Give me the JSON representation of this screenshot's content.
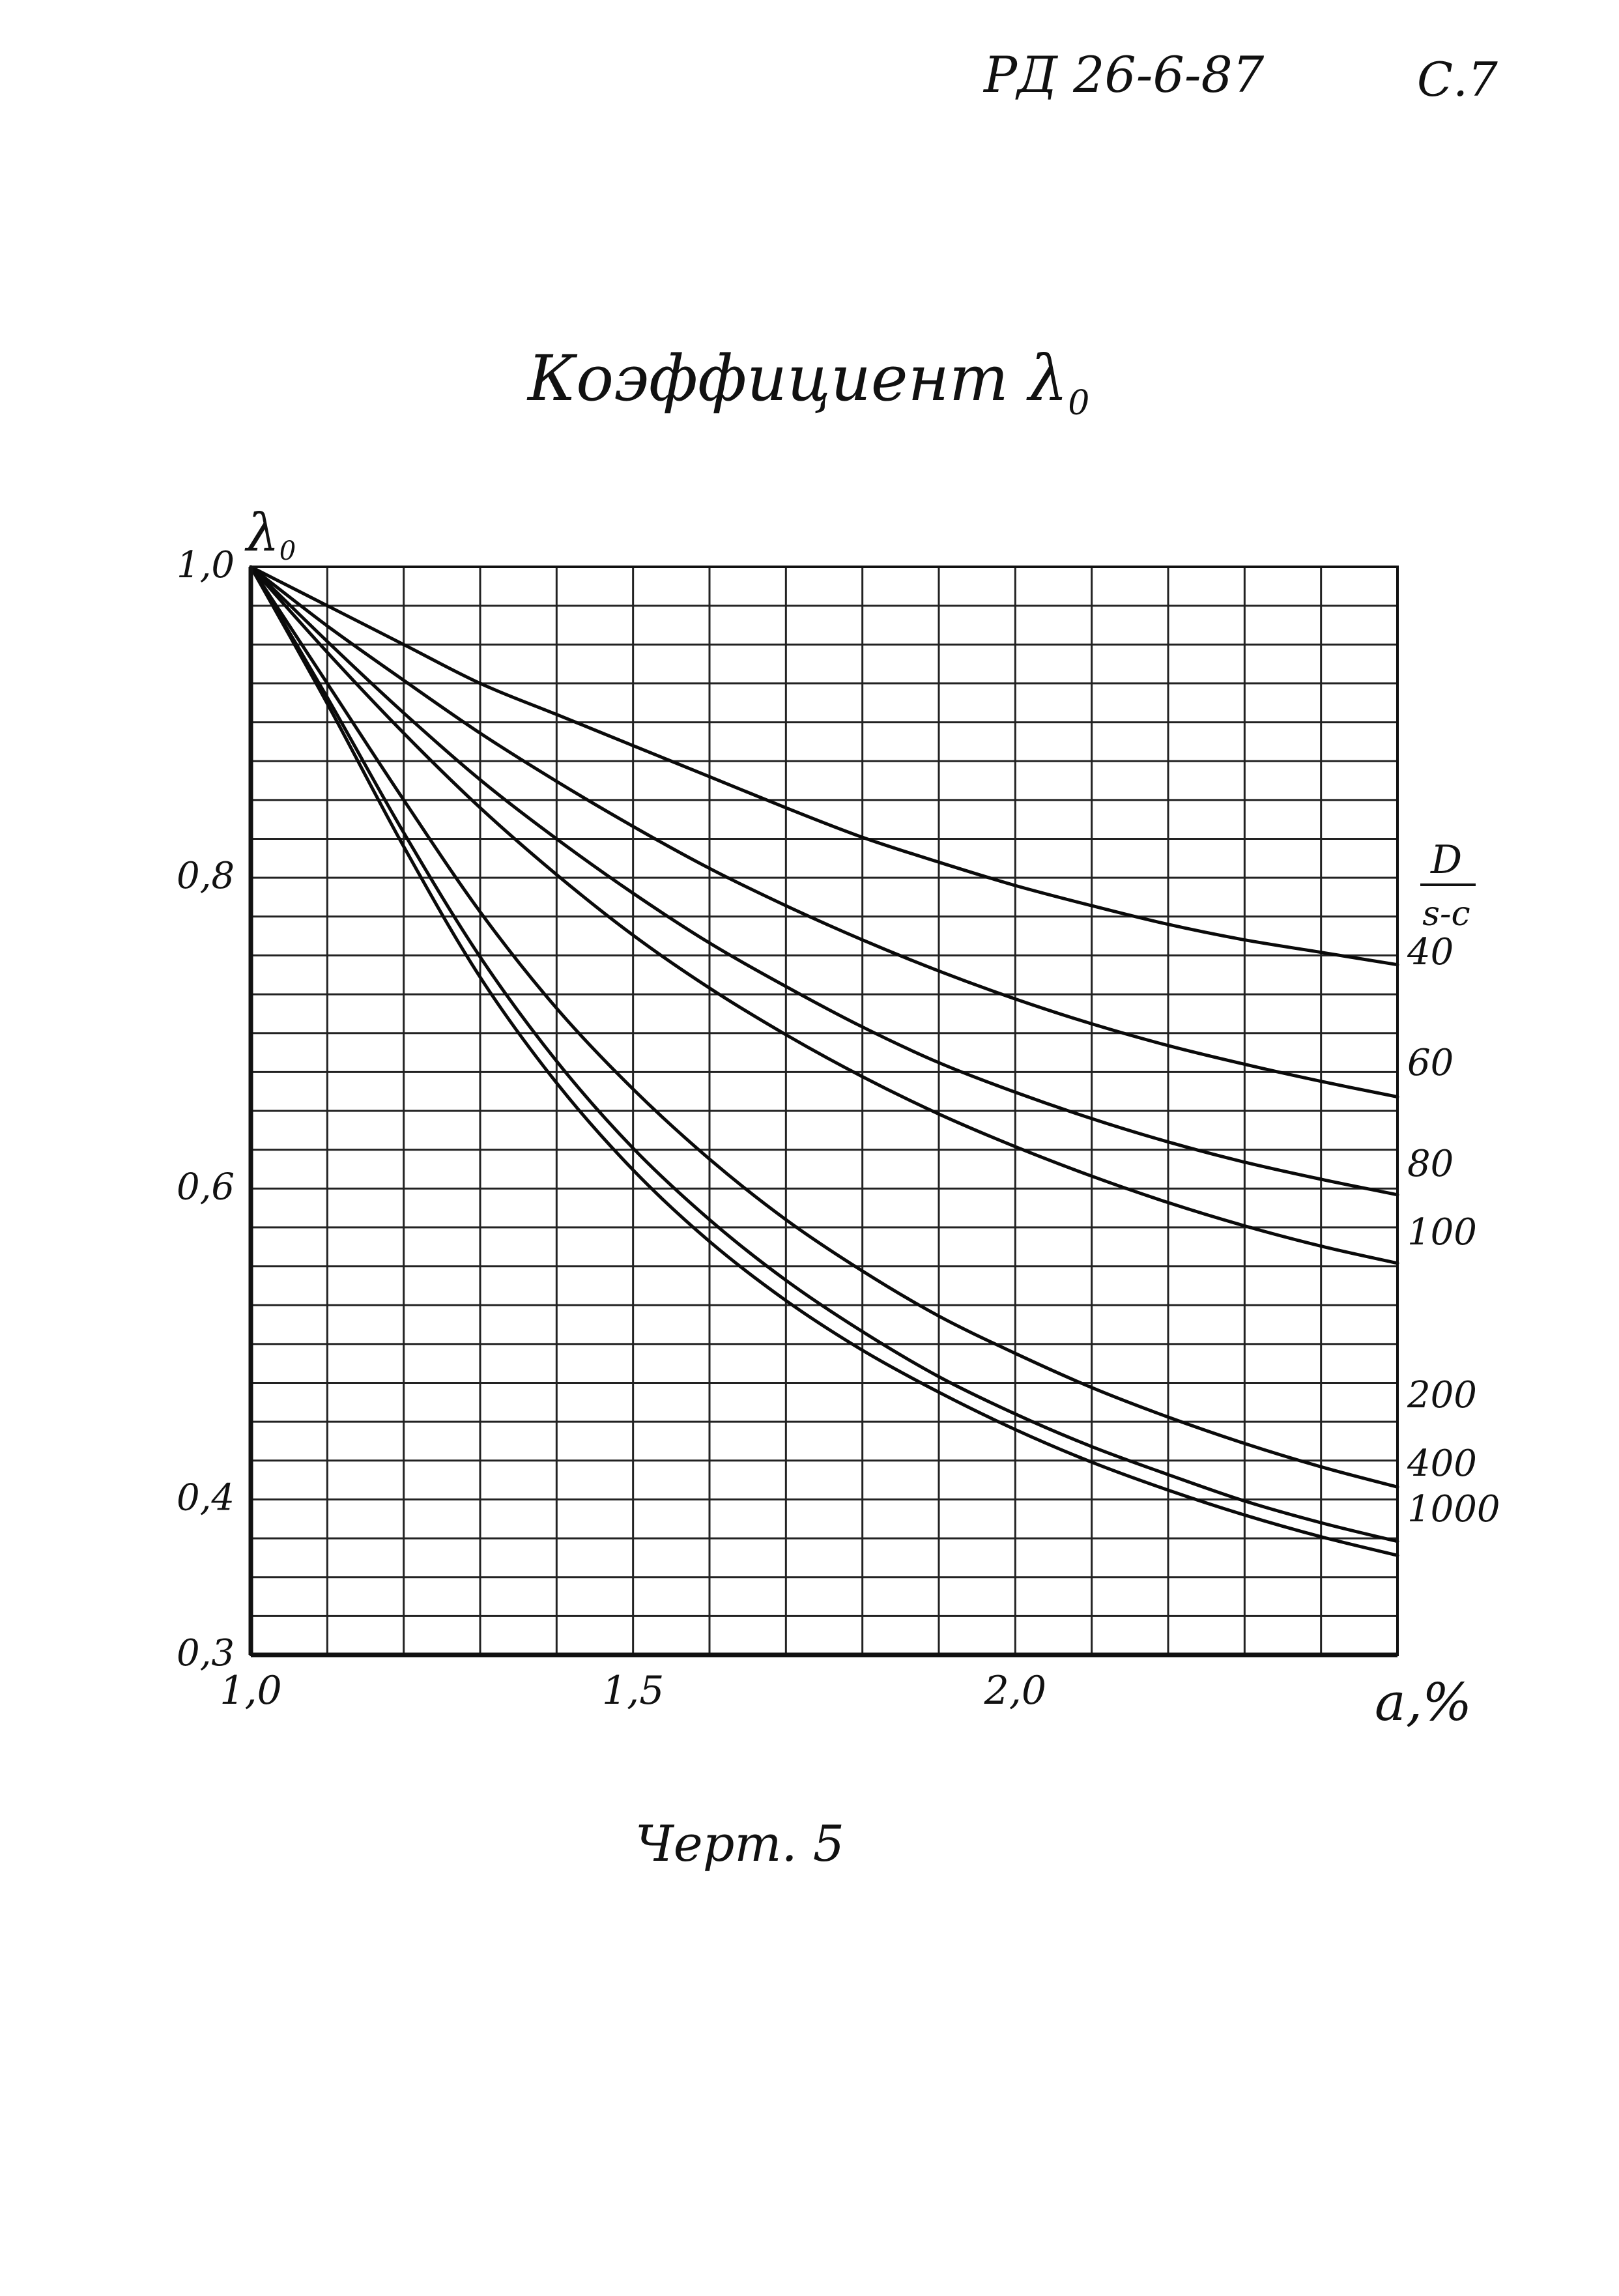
{
  "header": {
    "doc_code": "РД 26-6-87",
    "page": "С.7"
  },
  "title": {
    "text": "Коэффициент λ",
    "subscript": "0"
  },
  "caption": "Черт. 5",
  "chart_data": {
    "type": "line",
    "title": "Коэффициент λ0",
    "xlabel": "a,%",
    "ylabel": "λ0",
    "xlim": [
      1.0,
      2.5
    ],
    "ylim": [
      0.3,
      1.0
    ],
    "x_ticks": [
      "1,0",
      "1,5",
      "2,0"
    ],
    "x_tick_values": [
      1.0,
      1.5,
      2.0
    ],
    "y_ticks": [
      "1,0",
      "0,8",
      "0,6",
      "0,4",
      "0,3"
    ],
    "y_tick_values": [
      1.0,
      0.8,
      0.6,
      0.4,
      0.3
    ],
    "grid": true,
    "legend_title_numerator": "D",
    "legend_title_denominator": "s-c",
    "legend_placement": "right",
    "x": [
      1.0,
      1.1,
      1.2,
      1.3,
      1.4,
      1.5,
      1.6,
      1.7,
      1.8,
      1.9,
      2.0,
      2.1,
      2.2,
      2.3,
      2.4,
      2.5
    ],
    "series": [
      {
        "name": "40",
        "values": [
          1.0,
          0.975,
          0.95,
          0.925,
          0.905,
          0.885,
          0.865,
          0.845,
          0.826,
          0.81,
          0.795,
          0.782,
          0.77,
          0.76,
          0.752,
          0.744
        ]
      },
      {
        "name": "60",
        "values": [
          1.0,
          0.962,
          0.927,
          0.893,
          0.862,
          0.833,
          0.806,
          0.782,
          0.76,
          0.74,
          0.722,
          0.706,
          0.692,
          0.68,
          0.669,
          0.659
        ]
      },
      {
        "name": "80",
        "values": [
          1.0,
          0.952,
          0.906,
          0.863,
          0.825,
          0.79,
          0.758,
          0.73,
          0.704,
          0.681,
          0.662,
          0.645,
          0.63,
          0.617,
          0.606,
          0.596
        ]
      },
      {
        "name": "100",
        "values": [
          1.0,
          0.945,
          0.893,
          0.845,
          0.802,
          0.763,
          0.729,
          0.699,
          0.672,
          0.648,
          0.627,
          0.608,
          0.591,
          0.576,
          0.563,
          0.552
        ]
      },
      {
        "name": "200",
        "values": [
          1.0,
          0.925,
          0.85,
          0.778,
          0.716,
          0.664,
          0.619,
          0.58,
          0.547,
          0.518,
          0.494,
          0.472,
          0.453,
          0.436,
          0.421,
          0.408
        ]
      },
      {
        "name": "400",
        "values": [
          1.0,
          0.916,
          0.829,
          0.749,
          0.682,
          0.626,
          0.58,
          0.541,
          0.508,
          0.479,
          0.455,
          0.434,
          0.416,
          0.399,
          0.385,
          0.373
        ]
      },
      {
        "name": "1000",
        "values": [
          1.0,
          0.912,
          0.82,
          0.736,
          0.668,
          0.612,
          0.566,
          0.528,
          0.496,
          0.469,
          0.445,
          0.424,
          0.406,
          0.39,
          0.376,
          0.364
        ]
      }
    ]
  }
}
